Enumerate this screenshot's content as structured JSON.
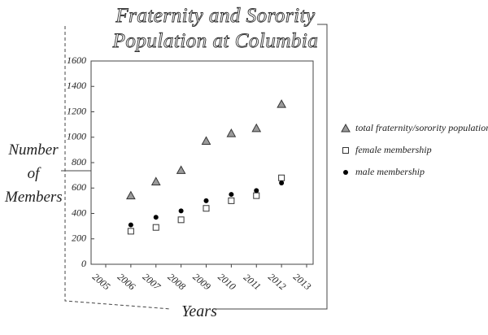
{
  "chart_data": {
    "type": "scatter",
    "title": "Fraternity and Sorority Population at Columbia",
    "x_label": "Years",
    "y_label": "Number of Members",
    "x": [
      2006,
      2007,
      2008,
      2009,
      2010,
      2011,
      2012
    ],
    "series": [
      {
        "name": "total fraternity/sorority population",
        "color": "#9a9a9a",
        "marker": "triangle",
        "values": [
          540,
          650,
          740,
          970,
          1030,
          1070,
          1260
        ]
      },
      {
        "name": "female membership",
        "color": "#ffffff",
        "marker": "square",
        "values": [
          260,
          290,
          350,
          440,
          500,
          540,
          680
        ]
      },
      {
        "name": "male membership",
        "color": "#000000",
        "marker": "circle",
        "values": [
          310,
          370,
          420,
          500,
          550,
          580,
          640
        ]
      }
    ],
    "xlim": [
      2005,
      2013
    ],
    "xticks": [
      2005,
      2006,
      2007,
      2008,
      2009,
      2010,
      2011,
      2012,
      2013
    ],
    "ylim": [
      0,
      1600
    ],
    "yticks": [
      0,
      200,
      400,
      600,
      800,
      1000,
      1200,
      1400,
      1600
    ],
    "grid": false,
    "legend_position": "right"
  }
}
